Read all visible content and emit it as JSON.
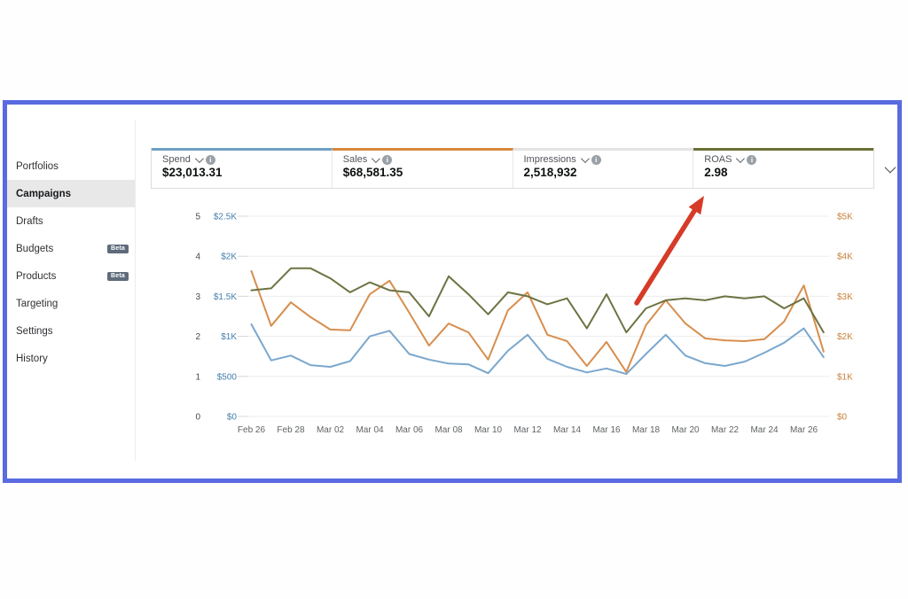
{
  "sidebar": {
    "items": [
      {
        "label": "Portfolios",
        "selected": false,
        "badge": ""
      },
      {
        "label": "Campaigns",
        "selected": true,
        "badge": ""
      },
      {
        "label": "Drafts",
        "selected": false,
        "badge": ""
      },
      {
        "label": "Budgets",
        "selected": false,
        "badge": "Beta"
      },
      {
        "label": "Products",
        "selected": false,
        "badge": "Beta"
      },
      {
        "label": "Targeting",
        "selected": false,
        "badge": ""
      },
      {
        "label": "Settings",
        "selected": false,
        "badge": ""
      },
      {
        "label": "History",
        "selected": false,
        "badge": ""
      }
    ]
  },
  "metric_cards": [
    {
      "label": "Spend",
      "value": "$23,013.31",
      "accent": "#6f9fc4"
    },
    {
      "label": "Sales",
      "value": "$68,581.35",
      "accent": "#d9873e"
    },
    {
      "label": "Impressions",
      "value": "2,518,932",
      "accent": "#e3e3e3"
    },
    {
      "label": "ROAS",
      "value": "2.98",
      "accent": "#6b7034"
    }
  ],
  "annotation": {
    "type": "arrow",
    "color": "#d63b28",
    "points_to": "ROAS card"
  },
  "chart_data": {
    "type": "line",
    "x": [
      "Feb 26",
      "Feb 27",
      "Feb 28",
      "Mar 01",
      "Mar 02",
      "Mar 03",
      "Mar 04",
      "Mar 05",
      "Mar 06",
      "Mar 07",
      "Mar 08",
      "Mar 09",
      "Mar 10",
      "Mar 11",
      "Mar 12",
      "Mar 13",
      "Mar 14",
      "Mar 15",
      "Mar 16",
      "Mar 17",
      "Mar 18",
      "Mar 19",
      "Mar 20",
      "Mar 21",
      "Mar 22",
      "Mar 23",
      "Mar 24",
      "Mar 25",
      "Mar 26",
      "Mar 27"
    ],
    "x_label_every": 2,
    "grid": true,
    "legend": "none",
    "axes": {
      "roas": {
        "side": "left",
        "ticks": [
          "5",
          "4",
          "3",
          "2",
          "1",
          "0"
        ],
        "max": 5,
        "color": "#4a4d40"
      },
      "spend": {
        "side": "left",
        "ticks": [
          "$2.5K",
          "$2K",
          "$1.5K",
          "$1K",
          "$500",
          "$0"
        ],
        "max": 2500,
        "color": "#4380ad"
      },
      "sales": {
        "side": "right",
        "ticks": [
          "$5K",
          "$4K",
          "$3K",
          "$2K",
          "$1K",
          "$0"
        ],
        "max": 5000,
        "color": "#c9813a"
      }
    },
    "series": [
      {
        "name": "Spend",
        "axis": "spend",
        "color": "#7aa7cd",
        "values": [
          1150,
          700,
          760,
          640,
          620,
          690,
          1000,
          1070,
          780,
          710,
          660,
          650,
          540,
          820,
          1020,
          720,
          620,
          550,
          600,
          530,
          780,
          1020,
          760,
          665,
          630,
          685,
          795,
          920,
          1100,
          740
        ]
      },
      {
        "name": "Sales",
        "axis": "sales",
        "color": "#d78e4d",
        "values": [
          3630,
          2260,
          2850,
          2480,
          2170,
          2150,
          3050,
          3390,
          2590,
          1770,
          2320,
          2100,
          1420,
          2650,
          3100,
          2040,
          1880,
          1260,
          1860,
          1110,
          2280,
          2900,
          2320,
          1950,
          1900,
          1880,
          1930,
          2370,
          3270,
          1620
        ]
      },
      {
        "name": "ROAS",
        "axis": "roas",
        "color": "#6d7342",
        "values": [
          3.15,
          3.2,
          3.7,
          3.7,
          3.45,
          3.1,
          3.35,
          3.15,
          3.1,
          2.5,
          3.5,
          3.05,
          2.55,
          3.1,
          3.0,
          2.8,
          2.95,
          2.2,
          3.05,
          2.1,
          2.7,
          2.9,
          2.95,
          2.9,
          3.0,
          2.95,
          3.0,
          2.7,
          2.95,
          2.1
        ]
      }
    ],
    "xlabel_color": "#5f6264",
    "grid_color": "#ededed"
  }
}
